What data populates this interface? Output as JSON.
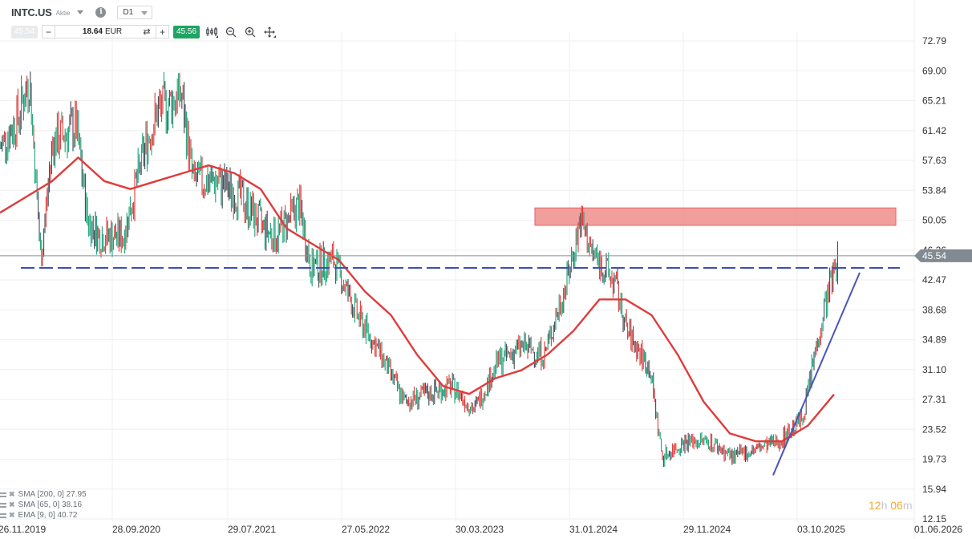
{
  "header": {
    "symbol": "INTC.US",
    "asset_type": "Aktie",
    "timeframe": "D1",
    "sell_price": "45.54",
    "quantity_value": "18.64",
    "quantity_currency": "EUR",
    "buy_price": "45.56",
    "icons": [
      "info-icon",
      "chevron-down-icon",
      "swap-icon",
      "minus-icon",
      "plus-icon",
      "indicators-icon",
      "zoom-out-icon",
      "zoom-in-icon",
      "crosshair-move-icon"
    ]
  },
  "indicators": [
    {
      "label": "SMA [200, 0] 27.95"
    },
    {
      "label": "SMA [65, 0] 38.16"
    },
    {
      "label": "EMA [9, 0] 40.72"
    }
  ],
  "countdown": {
    "hours": "12",
    "h_unit": "h",
    "minutes": "06",
    "m_unit": "m"
  },
  "colors": {
    "up_bar": "#1fa37a",
    "down_bar": "#e03b3b",
    "neutral_bar": "#3e4a56",
    "sma_line": "#e03b3b",
    "support_line": "#3b4fb8",
    "trend_line": "#4a55b8",
    "zone_fill": "#f09a98",
    "zone_border": "#e86a68",
    "price_line": "#8a9096",
    "price_tag": "#808a90",
    "grid": "#efefef"
  },
  "chart_data": {
    "type": "line",
    "title": "INTC.US D1",
    "xlabel": "",
    "ylabel": "",
    "ylim": [
      12.15,
      72.79
    ],
    "y_ticks": [
      "72.79",
      "69.00",
      "65.21",
      "61.42",
      "57.63",
      "53.84",
      "50.05",
      "46.26",
      "42.47",
      "38.68",
      "34.89",
      "31.10",
      "27.31",
      "23.52",
      "19.73",
      "15.94",
      "12.15"
    ],
    "x_ticks": [
      "26.11.2019",
      "28.09.2020",
      "29.07.2021",
      "27.05.2022",
      "30.03.2023",
      "31.01.2024",
      "29.11.2024",
      "03.10.2025",
      "01.06.2026"
    ],
    "current_price": "45.54",
    "grid": true,
    "series": [
      {
        "name": "INTC.US price (approx. closes)",
        "x": [
          "2019-11",
          "2020-01",
          "2020-02",
          "2020-03",
          "2020-04",
          "2020-06",
          "2020-07",
          "2020-08",
          "2020-10",
          "2020-12",
          "2021-01",
          "2021-03",
          "2021-04",
          "2021-06",
          "2021-08",
          "2021-10",
          "2021-11",
          "2022-01",
          "2022-02",
          "2022-04",
          "2022-06",
          "2022-08",
          "2022-10",
          "2022-12",
          "2023-02",
          "2023-04",
          "2023-06",
          "2023-08",
          "2023-10",
          "2023-12",
          "2024-01",
          "2024-02",
          "2024-04",
          "2024-05",
          "2024-07",
          "2024-08",
          "2024-10",
          "2024-12",
          "2025-02",
          "2025-04",
          "2025-06",
          "2025-08",
          "2025-09",
          "2025-10",
          "2025-11"
        ],
        "values": [
          58,
          63,
          68,
          45,
          60,
          62,
          50,
          48,
          48,
          60,
          64,
          66,
          55,
          55,
          53,
          49,
          48,
          52,
          44,
          45,
          38,
          33,
          27,
          28,
          29,
          26,
          32,
          34,
          33,
          43,
          50,
          46,
          42,
          36,
          31,
          20,
          22,
          22,
          20,
          21,
          22,
          25,
          33,
          40,
          45.5
        ]
      },
      {
        "name": "SMA 200",
        "values": [
          51,
          53,
          55,
          58,
          55,
          54,
          55,
          56,
          57,
          56,
          54,
          49,
          47,
          45,
          41,
          38,
          33,
          29,
          28,
          30,
          31,
          33,
          36,
          40,
          40,
          38,
          33,
          27,
          23,
          22,
          22,
          24,
          27.95
        ]
      }
    ],
    "annotations": [
      {
        "type": "zone",
        "label": "resistance zone",
        "y_range": [
          49.4,
          51.6
        ],
        "x_range": [
          "2023-08",
          "2026-05"
        ]
      },
      {
        "type": "hline_dashed",
        "label": "support / resistance",
        "y": 44.0
      },
      {
        "type": "trendline",
        "label": "uptrend",
        "from": [
          "2025-04",
          17.7
        ],
        "to": [
          "2025-11",
          43.4
        ]
      },
      {
        "type": "hline",
        "label": "last price",
        "y": 45.54
      }
    ],
    "legend": [
      "SMA [200, 0] 27.95",
      "SMA [65, 0] 38.16",
      "EMA [9, 0] 40.72"
    ]
  }
}
